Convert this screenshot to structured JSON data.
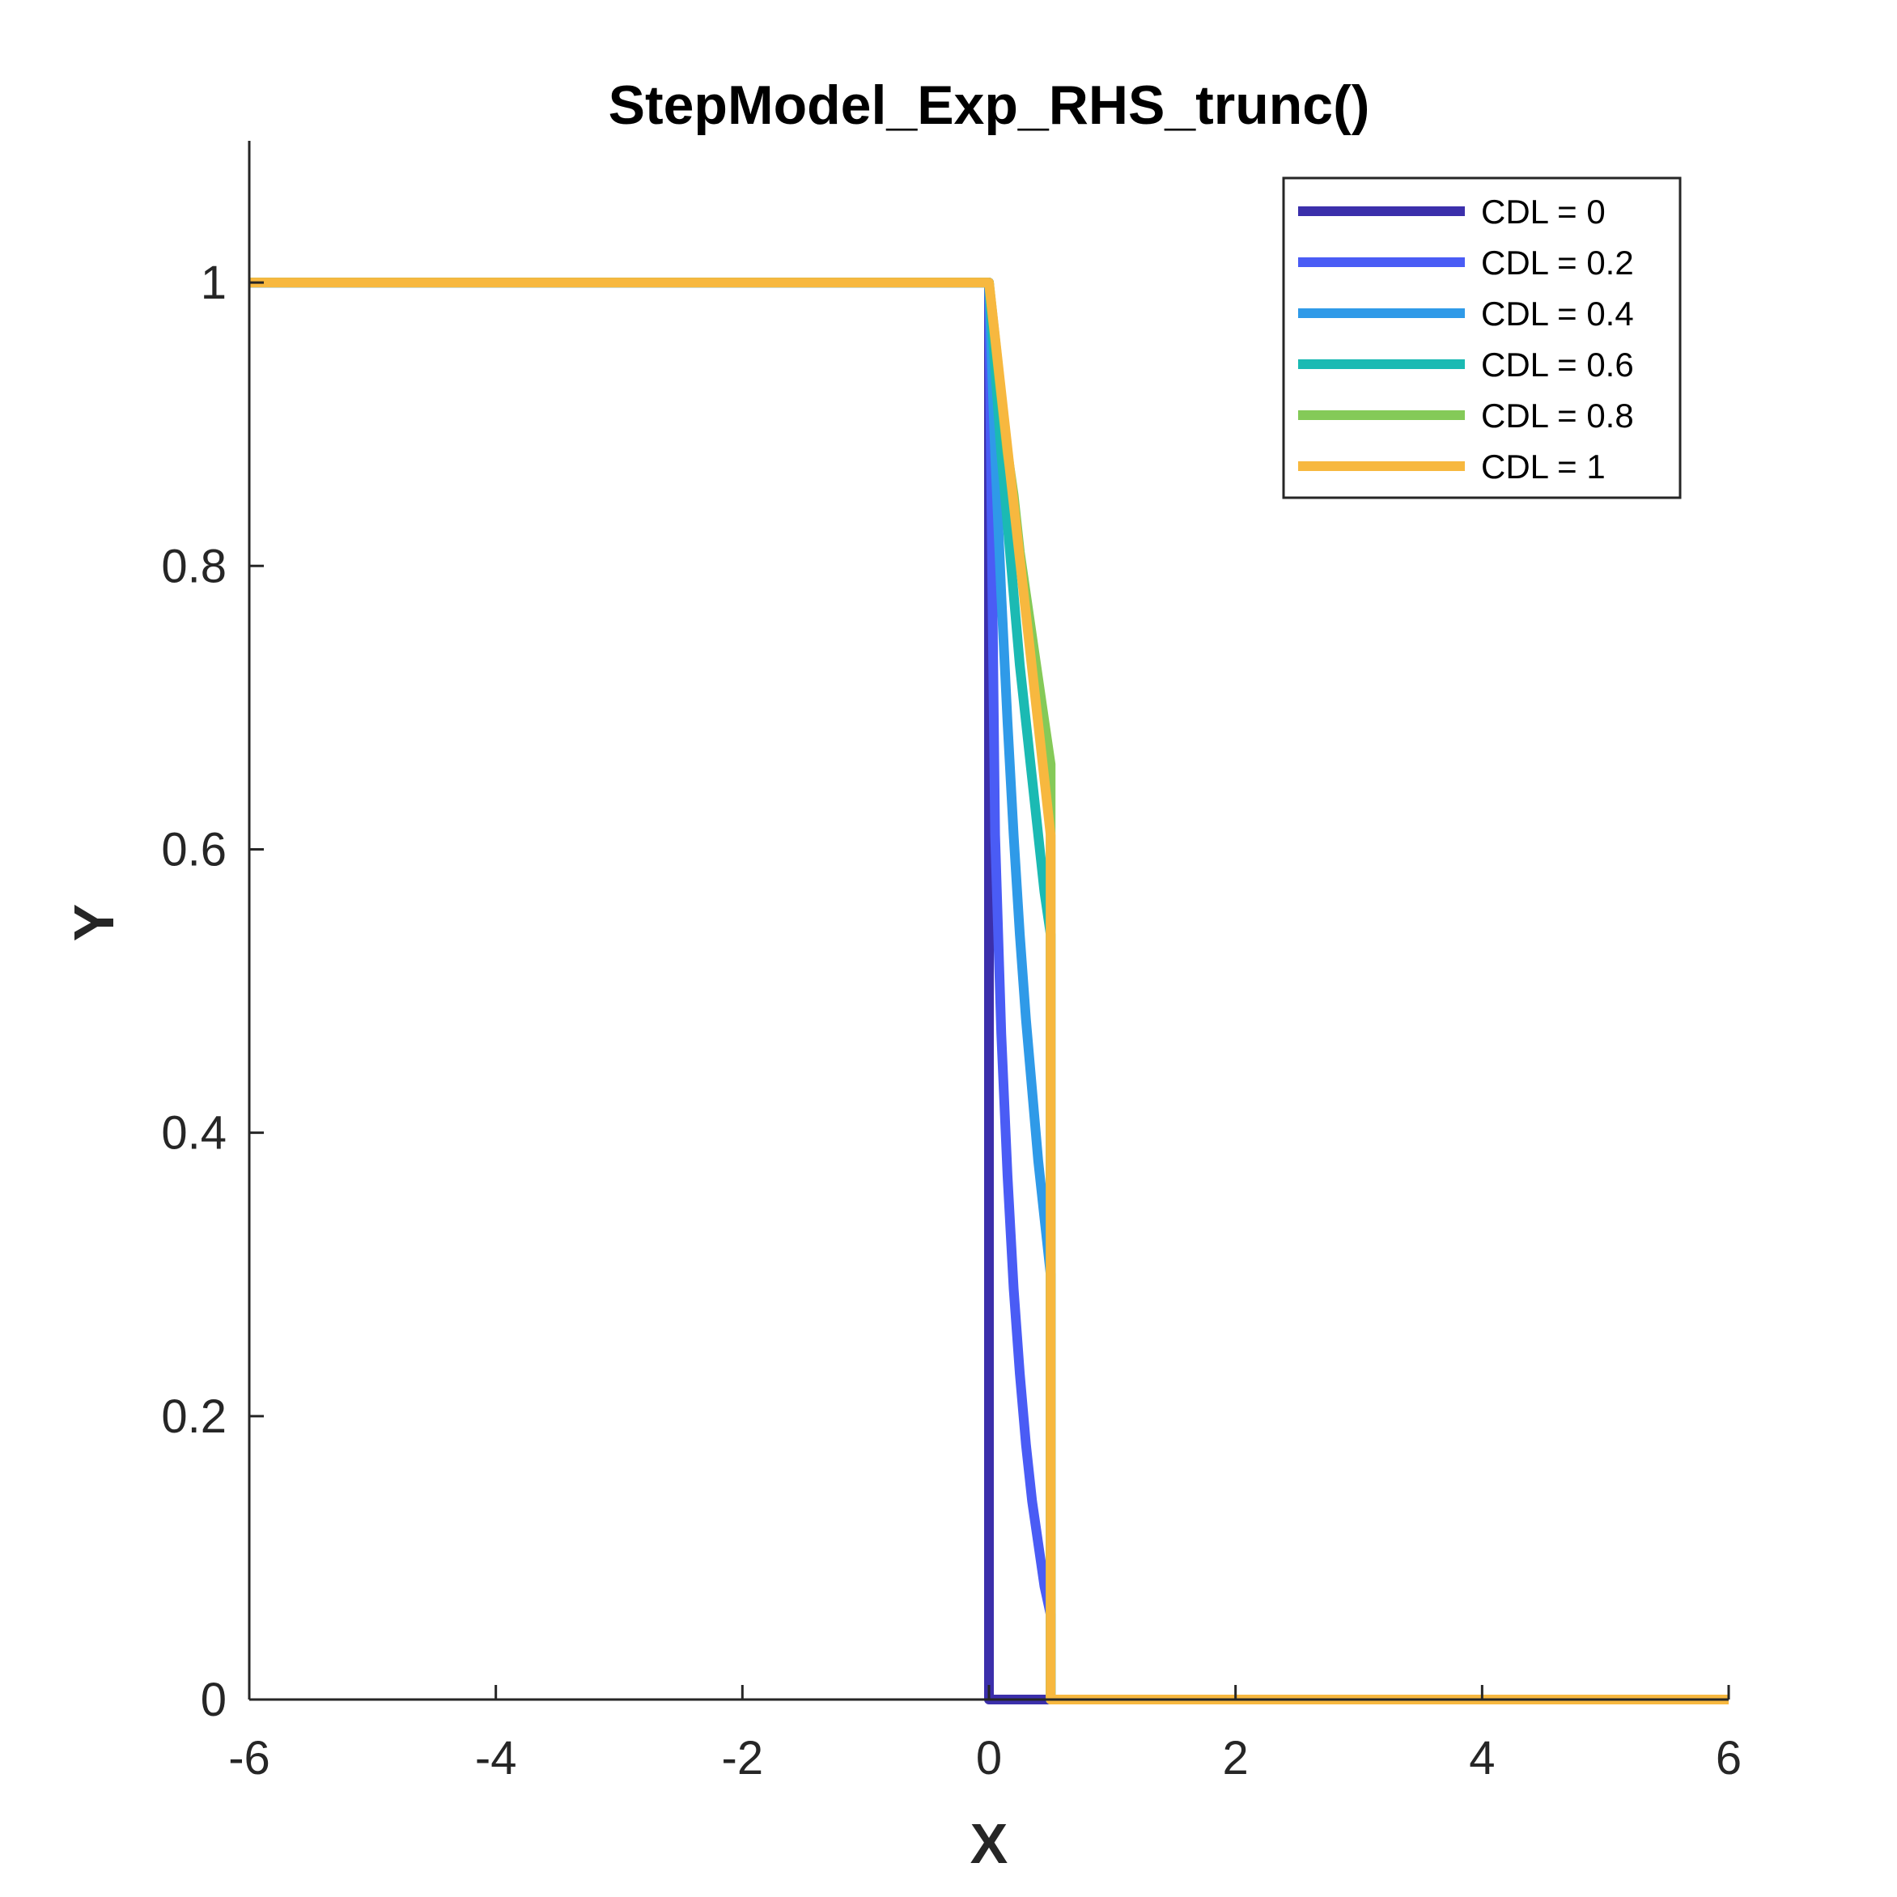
{
  "chart_data": {
    "type": "line",
    "title": "StepModel_Exp_RHS_trunc()",
    "xlabel": "X",
    "ylabel": "Y",
    "xlim": [
      -6,
      6
    ],
    "ylim": [
      0,
      1.1
    ],
    "xticks": [
      -6,
      -4,
      -2,
      0,
      2,
      4,
      6
    ],
    "yticks": [
      0,
      0.2,
      0.4,
      0.6,
      0.8,
      1
    ],
    "xtick_labels": [
      "-6",
      "-4",
      "-2",
      "0",
      "2",
      "4",
      "6"
    ],
    "ytick_labels": [
      "0",
      "0.2",
      "0.4",
      "0.6",
      "0.8",
      "1"
    ],
    "grid": false,
    "legend_position": "top-right",
    "series": [
      {
        "name": "CDL = 0",
        "color": "#3B2FAB",
        "x": [
          -6,
          0,
          0,
          0.5,
          0.5,
          6
        ],
        "y": [
          1,
          1,
          0,
          0,
          0,
          0
        ]
      },
      {
        "name": "CDL = 0.2",
        "color": "#4A5CF5",
        "x": [
          -6,
          0,
          0.05,
          0.1,
          0.15,
          0.2,
          0.25,
          0.3,
          0.35,
          0.4,
          0.45,
          0.5,
          0.5,
          6
        ],
        "y": [
          1,
          1,
          0.61,
          0.47,
          0.37,
          0.29,
          0.23,
          0.18,
          0.14,
          0.11,
          0.08,
          0.06,
          0,
          0
        ]
      },
      {
        "name": "CDL = 0.4",
        "color": "#2F9AE8",
        "x": [
          -6,
          0,
          0.05,
          0.1,
          0.15,
          0.2,
          0.25,
          0.3,
          0.35,
          0.4,
          0.45,
          0.5,
          0.5,
          6
        ],
        "y": [
          1,
          1,
          0.88,
          0.78,
          0.69,
          0.61,
          0.54,
          0.48,
          0.43,
          0.38,
          0.34,
          0.3,
          0,
          0
        ]
      },
      {
        "name": "CDL = 0.6",
        "color": "#1BBAB3",
        "x": [
          -6,
          0,
          0.05,
          0.1,
          0.15,
          0.2,
          0.25,
          0.3,
          0.35,
          0.4,
          0.45,
          0.5,
          0.5,
          6
        ],
        "y": [
          1,
          1,
          0.94,
          0.88,
          0.83,
          0.78,
          0.73,
          0.69,
          0.65,
          0.61,
          0.57,
          0.54,
          0,
          0
        ]
      },
      {
        "name": "CDL = 0.8",
        "color": "#84CA58",
        "x": [
          -6,
          0,
          0.05,
          0.1,
          0.15,
          0.2,
          0.25,
          0.3,
          0.35,
          0.4,
          0.45,
          0.5,
          0.5,
          6
        ],
        "y": [
          1,
          1,
          0.96,
          0.92,
          0.88,
          0.85,
          0.81,
          0.78,
          0.75,
          0.72,
          0.69,
          0.66,
          0,
          0
        ]
      },
      {
        "name": "CDL = 1",
        "color": "#F7B83F",
        "x": [
          -6,
          0,
          0.5,
          0.5,
          6
        ],
        "y": [
          1,
          1,
          0.61,
          0,
          0
        ]
      }
    ]
  }
}
